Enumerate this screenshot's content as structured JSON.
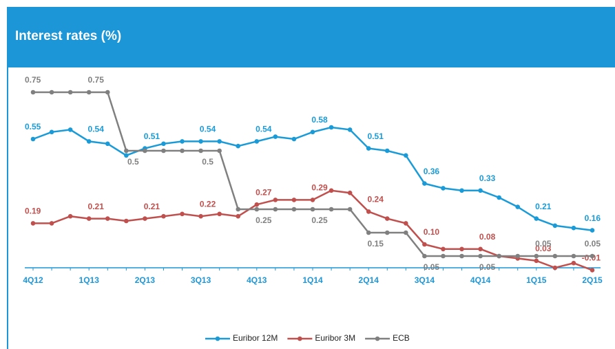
{
  "chart_data": {
    "type": "line",
    "title": "Interest rates (%)",
    "categories": [
      "4Q12",
      null,
      null,
      "1Q13",
      null,
      null,
      "2Q13",
      null,
      null,
      "3Q13",
      null,
      null,
      "4Q13",
      null,
      null,
      "1Q14",
      null,
      null,
      "2Q14",
      null,
      null,
      "3Q14",
      null,
      null,
      "4Q14",
      null,
      null,
      "1Q15",
      null,
      null,
      "2Q15"
    ],
    "ylim": [
      -0.3,
      0.85
    ],
    "legend": "bottom",
    "series": [
      {
        "name": "Euribor 12M",
        "color": "#1a9bd7",
        "values": [
          0.55,
          0.58,
          0.59,
          0.54,
          0.53,
          0.48,
          0.51,
          0.53,
          0.54,
          0.54,
          0.54,
          0.52,
          0.54,
          0.56,
          0.55,
          0.58,
          0.6,
          0.59,
          0.51,
          0.5,
          0.48,
          0.36,
          0.34,
          0.33,
          0.33,
          0.3,
          0.26,
          0.21,
          0.18,
          0.17,
          0.16
        ],
        "value_labels": [
          "0.55",
          null,
          null,
          "0.54",
          null,
          null,
          "0.51",
          null,
          null,
          "0.54",
          null,
          null,
          "0.54",
          null,
          null,
          "0.58",
          null,
          null,
          "0.51",
          null,
          null,
          "0.36",
          null,
          null,
          "0.33",
          null,
          null,
          "0.21",
          null,
          null,
          "0.16"
        ]
      },
      {
        "name": "Euribor 3M",
        "color": "#c0504d",
        "values": [
          0.19,
          0.19,
          0.22,
          0.21,
          0.21,
          0.2,
          0.21,
          0.22,
          0.23,
          0.22,
          0.23,
          0.22,
          0.27,
          0.29,
          0.29,
          0.29,
          0.33,
          0.32,
          0.24,
          0.21,
          0.19,
          0.1,
          0.08,
          0.08,
          0.08,
          0.05,
          0.04,
          0.03,
          0.0,
          0.02,
          -0.01
        ],
        "value_labels": [
          "0.19",
          null,
          null,
          "0.21",
          null,
          null,
          "0.21",
          null,
          null,
          "0.22",
          null,
          null,
          "0.27",
          null,
          null,
          "0.29",
          null,
          null,
          "0.24",
          null,
          null,
          "0.10",
          null,
          null,
          "0.08",
          null,
          null,
          "0.03",
          null,
          null,
          "-0.01"
        ]
      },
      {
        "name": "ECB",
        "color": "#808080",
        "values": [
          0.75,
          0.75,
          0.75,
          0.75,
          0.75,
          0.5,
          0.5,
          0.5,
          0.5,
          0.5,
          0.5,
          0.25,
          0.25,
          0.25,
          0.25,
          0.25,
          0.25,
          0.25,
          0.15,
          0.15,
          0.15,
          0.05,
          0.05,
          0.05,
          0.05,
          0.05,
          0.05,
          0.05,
          0.05,
          0.05,
          0.05
        ],
        "value_labels": [
          "0.75",
          null,
          null,
          "0.75",
          null,
          "0.5",
          null,
          null,
          null,
          "0.5",
          null,
          null,
          "0.25",
          null,
          null,
          "0.25",
          null,
          null,
          "0.15",
          null,
          null,
          "0.05",
          null,
          null,
          "0.05",
          null,
          null,
          "0.05",
          null,
          null,
          "0.05"
        ]
      }
    ]
  }
}
